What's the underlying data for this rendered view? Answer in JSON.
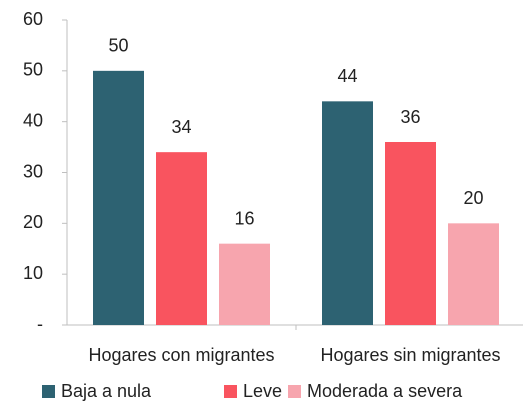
{
  "chart_data": {
    "type": "bar",
    "categories": [
      "Hogares con migrantes",
      "Hogares sin migrantes"
    ],
    "series": [
      {
        "name": "Baja a nula",
        "color": "#2d6272",
        "values": [
          50,
          44
        ]
      },
      {
        "name": "Leve",
        "color": "#f9545f",
        "values": [
          34,
          36
        ]
      },
      {
        "name": "Moderada a severa",
        "color": "#f7a5ae",
        "values": [
          16,
          20
        ]
      }
    ],
    "ylim": [
      0,
      60
    ],
    "yticks": [
      {
        "value": 0,
        "label": "-"
      },
      10,
      20,
      30,
      40,
      50,
      60
    ],
    "grid": false
  }
}
